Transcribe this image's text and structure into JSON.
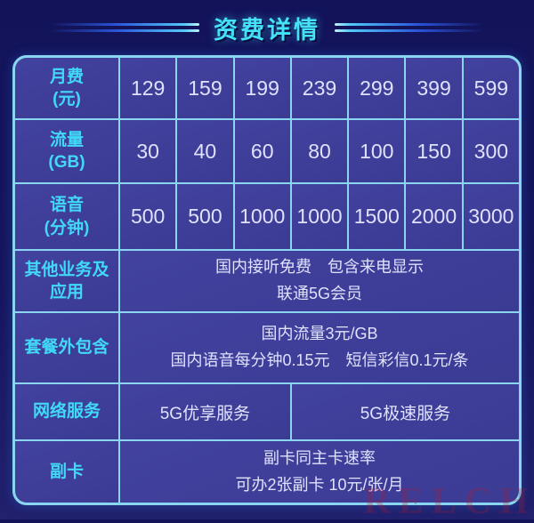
{
  "header": {
    "title": "资费详情",
    "title_color": "#43e2f8",
    "line_color": "#53cbf8"
  },
  "table": {
    "border_color": "#8ad6f0",
    "cell_background": "#3d3d99",
    "label_color": "#41d9f7",
    "value_color": "#e0e1fd",
    "rows": [
      {
        "label": "月费\n(元)",
        "values": [
          "129",
          "159",
          "199",
          "239",
          "299",
          "399",
          "599"
        ]
      },
      {
        "label": "流量\n(GB)",
        "values": [
          "30",
          "40",
          "60",
          "80",
          "100",
          "150",
          "300"
        ]
      },
      {
        "label": "语音\n(分钟)",
        "values": [
          "500",
          "500",
          "1000",
          "1000",
          "1500",
          "2000",
          "3000"
        ]
      },
      {
        "label": "其他业务及\n应用",
        "merged": "国内接听免费　包含来电显示\n联通5G会员"
      },
      {
        "label": "套餐外包含",
        "merged": "国内流量3元/GB\n国内语音每分钟0.15元　短信彩信0.1元/条"
      },
      {
        "label": "网络服务",
        "cells": [
          "5G优享服务",
          "5G极速服务"
        ]
      },
      {
        "label": "副卡",
        "merged": "副卡同主卡速率\n可办2张副卡 10元/张/月"
      }
    ]
  },
  "watermark": {
    "text": "RELCHI",
    "color": "#b01a30"
  },
  "chart_data": {
    "type": "table",
    "title": "资费详情",
    "rows": [
      {
        "header": "月费(元)",
        "cells": [
          "129",
          "159",
          "199",
          "239",
          "299",
          "399",
          "599"
        ]
      },
      {
        "header": "流量(GB)",
        "cells": [
          "30",
          "40",
          "60",
          "80",
          "100",
          "150",
          "300"
        ]
      },
      {
        "header": "语音(分钟)",
        "cells": [
          "500",
          "500",
          "1000",
          "1000",
          "1500",
          "2000",
          "3000"
        ]
      },
      {
        "header": "其他业务及应用",
        "cells": [
          "国内接听免费 包含来电显示 联通5G会员"
        ]
      },
      {
        "header": "套餐外包含",
        "cells": [
          "国内流量3元/GB 国内语音每分钟0.15元 短信彩信0.1元/条"
        ]
      },
      {
        "header": "网络服务",
        "cells": [
          "5G优享服务",
          "5G极速服务"
        ]
      },
      {
        "header": "副卡",
        "cells": [
          "副卡同主卡速率 可办2张副卡 10元/张/月"
        ]
      }
    ],
    "layout": {
      "header_column": "left",
      "grid": true,
      "merged_rows": [
        3,
        4,
        6
      ]
    }
  }
}
